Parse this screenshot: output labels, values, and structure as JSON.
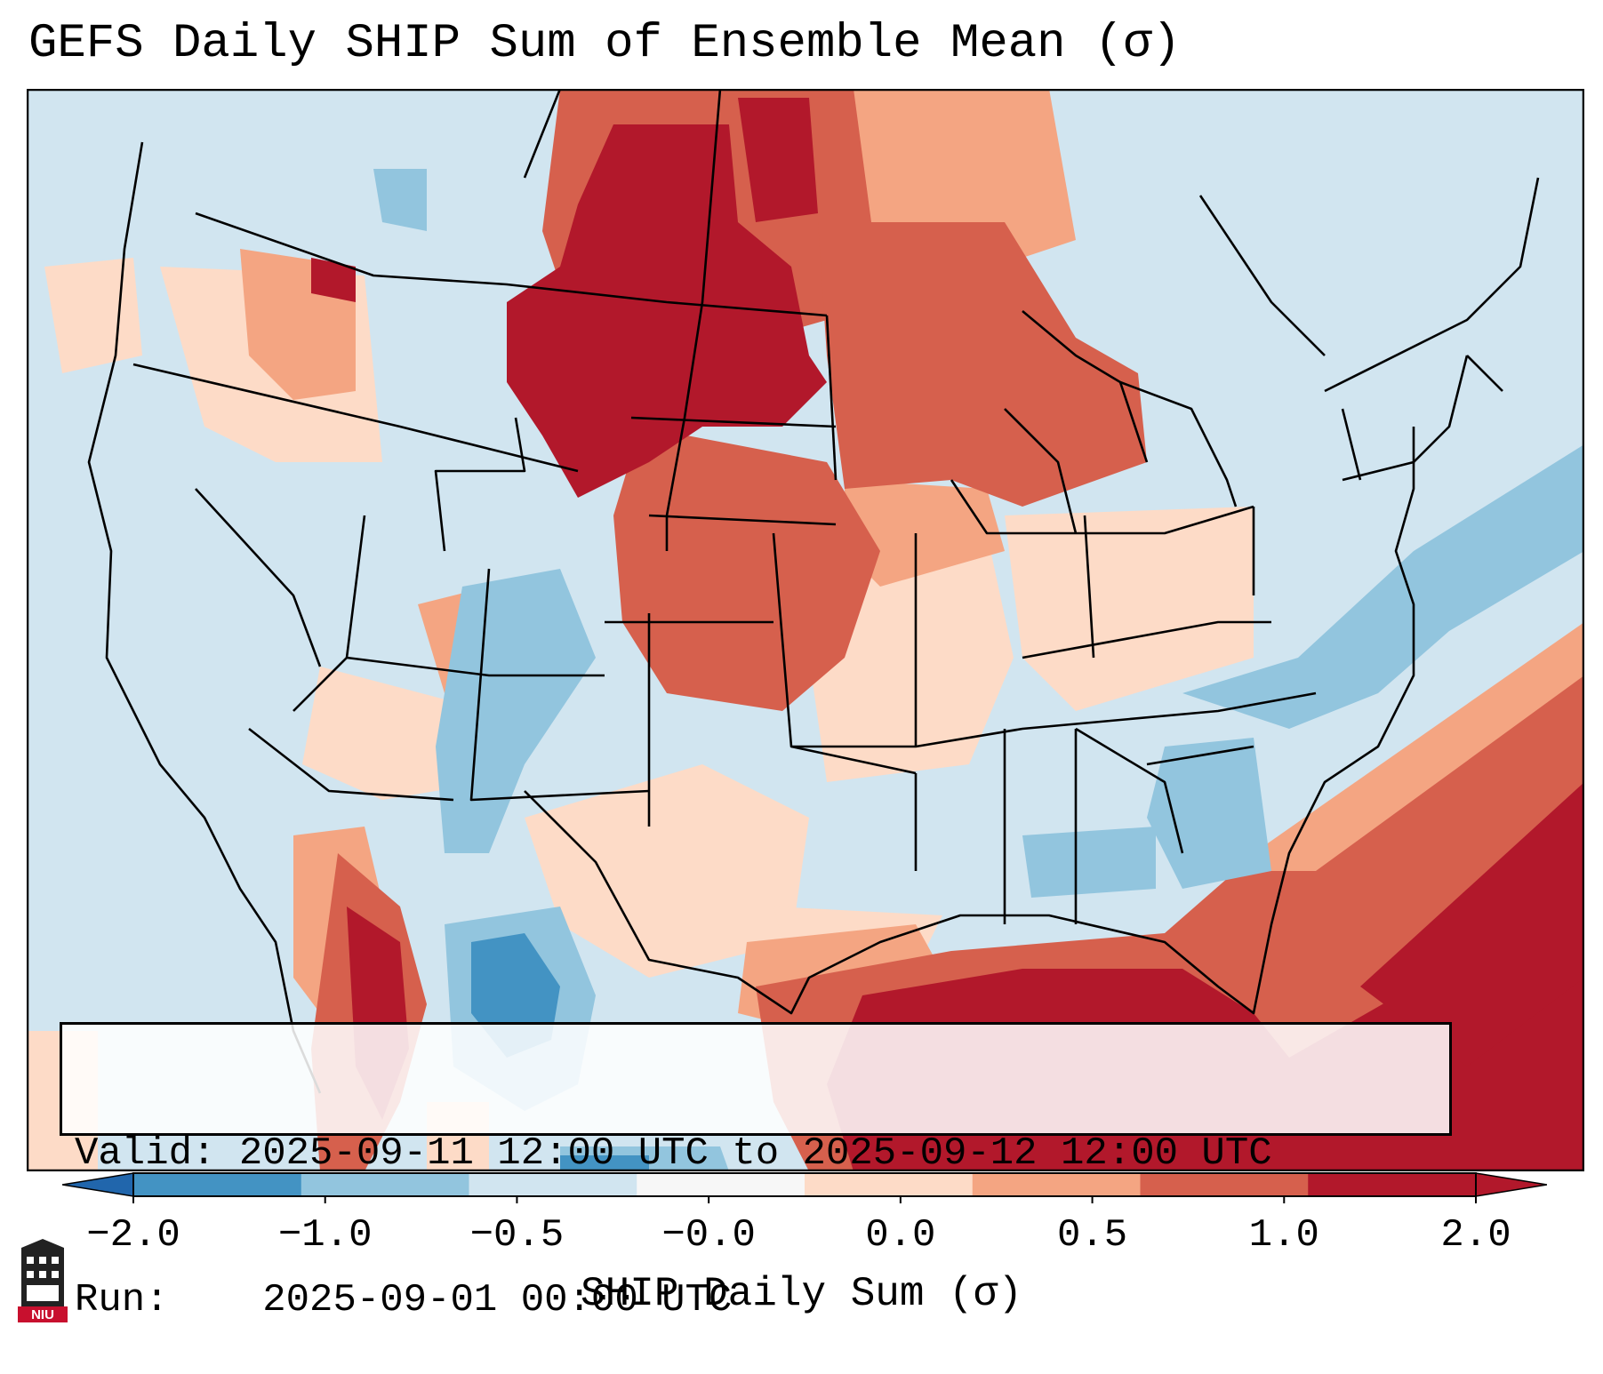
{
  "title": "GEFS Daily SHIP Sum of Ensemble Mean (σ)",
  "info": {
    "valid_label": "Valid:",
    "valid_value": "2025-09-11 12:00 UTC to 2025-09-12 12:00 UTC",
    "run_label": "Run:",
    "run_value": "2025-09-01 00:00 UTC"
  },
  "colorbar": {
    "label": "SHIP Daily Sum (σ)",
    "ticks": [
      "−2.0",
      "−1.0",
      "−0.5",
      "−0.0",
      "0.0",
      "0.5",
      "1.0",
      "2.0"
    ],
    "colors": [
      "#4393c3",
      "#92c5de",
      "#d1e5f0",
      "#f7f7f7",
      "#fddbc7",
      "#f4a582",
      "#d6604d",
      "#b2182b"
    ],
    "extend_low_color": "#2166ac",
    "extend_high_color": "#b2182b"
  },
  "logo": {
    "text": "NIU",
    "icon": "niu-logo-icon"
  }
}
